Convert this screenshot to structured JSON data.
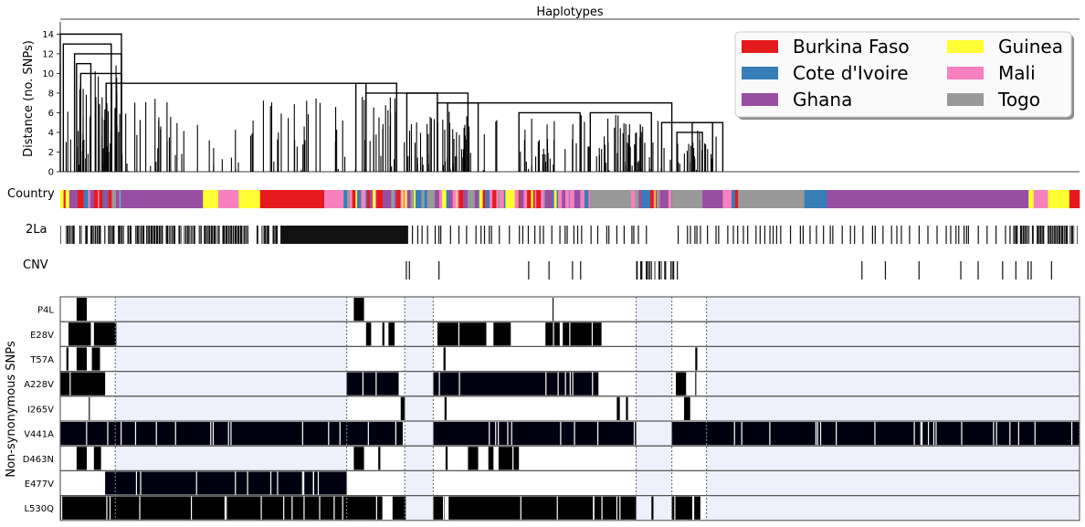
{
  "chart_data": [
    {
      "type": "dendrogram",
      "title": "Haplotypes",
      "ylabel": "Distance (no. SNPs)",
      "ylim": [
        0,
        14.5
      ],
      "yticks": [
        0,
        2,
        4,
        6,
        8,
        10,
        12,
        14
      ],
      "n_haplotypes": 800,
      "clusters": [
        {
          "x_start": 0.0,
          "x_end": 0.06,
          "height": 14
        },
        {
          "x_start": 0.003,
          "x_end": 0.05,
          "height": 13
        },
        {
          "x_start": 0.014,
          "x_end": 0.06,
          "height": 12
        },
        {
          "x_start": 0.016,
          "x_end": 0.03,
          "height": 11
        },
        {
          "x_start": 0.02,
          "x_end": 0.06,
          "height": 10
        },
        {
          "x_start": 0.045,
          "x_end": 0.3,
          "height": 9
        },
        {
          "x_start": 0.29,
          "x_end": 0.33,
          "height": 9
        },
        {
          "x_start": 0.3,
          "x_end": 0.37,
          "height": 8
        },
        {
          "x_start": 0.34,
          "x_end": 0.4,
          "height": 8
        },
        {
          "x_start": 0.37,
          "x_end": 0.6,
          "height": 7
        },
        {
          "x_start": 0.38,
          "x_end": 0.41,
          "height": 7
        },
        {
          "x_start": 0.45,
          "x_end": 0.51,
          "height": 6
        },
        {
          "x_start": 0.52,
          "x_end": 0.58,
          "height": 6
        },
        {
          "x_start": 0.59,
          "x_end": 0.64,
          "height": 5
        },
        {
          "x_start": 0.62,
          "x_end": 0.65,
          "height": 5
        },
        {
          "x_start": 0.605,
          "x_end": 0.63,
          "height": 4
        }
      ]
    },
    {
      "type": "heatmap",
      "track_labels": {
        "country": "Country",
        "inversion": "2La",
        "cnv": "CNV"
      },
      "ylabel": "Non-synonymous SNPs",
      "legend": {
        "placement": "top-right",
        "columns": 2,
        "entries": [
          {
            "name": "Burkina Faso",
            "color": "#e41a1c"
          },
          {
            "name": "Guinea",
            "color": "#ffff33"
          },
          {
            "name": "Cote d'Ivoire",
            "color": "#377eb8"
          },
          {
            "name": "Mali",
            "color": "#f781bf"
          },
          {
            "name": "Ghana",
            "color": "#984ea3"
          },
          {
            "name": "Togo",
            "color": "#999999"
          }
        ]
      },
      "country_blocks": [
        {
          "start": 0.0,
          "end": 0.06,
          "country": "mixed"
        },
        {
          "start": 0.06,
          "end": 0.14,
          "country": "Ghana"
        },
        {
          "start": 0.14,
          "end": 0.155,
          "country": "Guinea"
        },
        {
          "start": 0.155,
          "end": 0.175,
          "country": "Mali"
        },
        {
          "start": 0.175,
          "end": 0.196,
          "country": "Guinea"
        },
        {
          "start": 0.196,
          "end": 0.259,
          "country": "Burkina Faso"
        },
        {
          "start": 0.259,
          "end": 0.278,
          "country": "Mali"
        },
        {
          "start": 0.278,
          "end": 0.36,
          "country": "mixed"
        },
        {
          "start": 0.36,
          "end": 0.39,
          "country": "mixed"
        },
        {
          "start": 0.39,
          "end": 0.42,
          "country": "mixed"
        },
        {
          "start": 0.42,
          "end": 0.46,
          "country": "mixed"
        },
        {
          "start": 0.46,
          "end": 0.5,
          "country": "mixed"
        },
        {
          "start": 0.5,
          "end": 0.52,
          "country": "mixed"
        },
        {
          "start": 0.52,
          "end": 0.56,
          "country": "Togo"
        },
        {
          "start": 0.56,
          "end": 0.584,
          "country": "mixed"
        },
        {
          "start": 0.584,
          "end": 0.6,
          "country": "mixed"
        },
        {
          "start": 0.6,
          "end": 0.63,
          "country": "Togo"
        },
        {
          "start": 0.63,
          "end": 0.65,
          "country": "Ghana"
        },
        {
          "start": 0.65,
          "end": 0.665,
          "country": "mixed"
        },
        {
          "start": 0.665,
          "end": 0.71,
          "country": "Togo"
        },
        {
          "start": 0.71,
          "end": 0.73,
          "country": "Togo"
        },
        {
          "start": 0.73,
          "end": 0.735,
          "country": "Cote d'Ivoire"
        },
        {
          "start": 0.735,
          "end": 0.752,
          "country": "Cote d'Ivoire"
        },
        {
          "start": 0.752,
          "end": 0.95,
          "country": "Ghana"
        },
        {
          "start": 0.95,
          "end": 0.955,
          "country": "Guinea"
        },
        {
          "start": 0.955,
          "end": 0.969,
          "country": "Mali"
        },
        {
          "start": 0.969,
          "end": 0.99,
          "country": "Guinea"
        },
        {
          "start": 0.99,
          "end": 1.0,
          "country": "Burkina Faso"
        }
      ],
      "shaded_regions": [
        {
          "start": 0.054,
          "end": 0.281
        },
        {
          "start": 0.338,
          "end": 0.366
        },
        {
          "start": 0.565,
          "end": 0.6
        },
        {
          "start": 0.634,
          "end": 1.0
        }
      ],
      "boundaries": [
        0.054,
        0.281,
        0.338,
        0.366,
        0.565,
        0.6,
        0.634,
        1.0
      ],
      "snp_labels": [
        "P4L",
        "E28V",
        "T57A",
        "A228V",
        "I265V",
        "V441A",
        "D463N",
        "E477V",
        "L530Q"
      ],
      "snp_rows": [
        {
          "name": "P4L",
          "blocks": [
            [
              0.016,
              0.026
            ],
            [
              0.288,
              0.298
            ],
            [
              0.483,
              0.484
            ]
          ]
        },
        {
          "name": "E28V",
          "blocks": [
            [
              0.008,
              0.03
            ],
            [
              0.033,
              0.055
            ],
            [
              0.3,
              0.305
            ],
            [
              0.316,
              0.318
            ],
            [
              0.322,
              0.328
            ],
            [
              0.37,
              0.418
            ],
            [
              0.425,
              0.442
            ],
            [
              0.476,
              0.49
            ],
            [
              0.493,
              0.531
            ]
          ]
        },
        {
          "name": "T57A",
          "blocks": [
            [
              0.006,
              0.008
            ],
            [
              0.016,
              0.026
            ],
            [
              0.031,
              0.039
            ],
            [
              0.376,
              0.378
            ],
            [
              0.623,
              0.625
            ]
          ]
        },
        {
          "name": "A228V",
          "blocks": [
            [
              0.0,
              0.044
            ],
            [
              0.281,
              0.332
            ],
            [
              0.366,
              0.528
            ],
            [
              0.604,
              0.614
            ],
            [
              0.623,
              0.624
            ]
          ]
        },
        {
          "name": "I265V",
          "blocks": [
            [
              0.028,
              0.029
            ],
            [
              0.334,
              0.338
            ],
            [
              0.377,
              0.379
            ],
            [
              0.546,
              0.549
            ],
            [
              0.555,
              0.557
            ],
            [
              0.612,
              0.618
            ]
          ]
        },
        {
          "name": "V441A",
          "blocks": [
            [
              0.0,
              0.336
            ],
            [
              0.366,
              0.565
            ],
            [
              0.6,
              1.0
            ]
          ]
        },
        {
          "name": "D463N",
          "blocks": [
            [
              0.016,
              0.026
            ],
            [
              0.033,
              0.04
            ],
            [
              0.288,
              0.298
            ],
            [
              0.312,
              0.314
            ],
            [
              0.378,
              0.38
            ],
            [
              0.4,
              0.41
            ],
            [
              0.42,
              0.425
            ],
            [
              0.43,
              0.45
            ]
          ]
        },
        {
          "name": "E477V",
          "blocks": [
            [
              0.044,
              0.281
            ]
          ]
        },
        {
          "name": "L530Q",
          "blocks": [
            [
              0.0,
              0.316
            ],
            [
              0.326,
              0.339
            ],
            [
              0.366,
              0.377
            ],
            [
              0.381,
              0.565
            ],
            [
              0.58,
              0.582
            ],
            [
              0.6,
              0.62
            ],
            [
              0.622,
              0.628
            ]
          ]
        }
      ]
    }
  ]
}
